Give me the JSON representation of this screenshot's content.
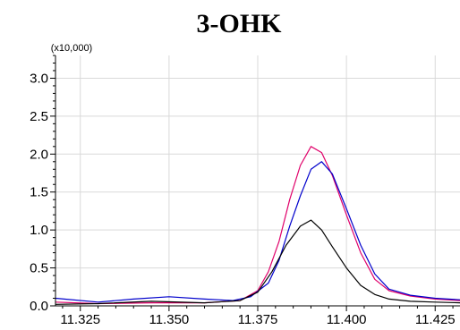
{
  "chart_data": {
    "type": "line",
    "title": "3-OHK",
    "y_multiplier_label": "(x10,000)",
    "xlim": [
      11.318,
      11.432
    ],
    "ylim": [
      0.0,
      3.3
    ],
    "x_ticks": [
      11.325,
      11.35,
      11.375,
      11.4,
      11.425
    ],
    "x_tick_labels": [
      "11.325",
      "11.350",
      "11.375",
      "11.400",
      "11.425"
    ],
    "y_ticks": [
      0.0,
      0.5,
      1.0,
      1.5,
      2.0,
      2.5,
      3.0
    ],
    "y_tick_labels": [
      "0.0",
      "0.5",
      "1.0",
      "1.5",
      "2.0",
      "2.5",
      "3.0"
    ],
    "grid": true,
    "legend": "none",
    "series": [
      {
        "color": "#e0006a",
        "x": [
          11.318,
          11.33,
          11.345,
          11.36,
          11.37,
          11.375,
          11.378,
          11.381,
          11.384,
          11.387,
          11.39,
          11.393,
          11.396,
          11.4,
          11.404,
          11.408,
          11.412,
          11.418,
          11.425,
          11.432
        ],
        "y": [
          0.05,
          0.03,
          0.04,
          0.04,
          0.07,
          0.2,
          0.45,
          0.85,
          1.4,
          1.85,
          2.1,
          2.02,
          1.72,
          1.2,
          0.7,
          0.35,
          0.2,
          0.13,
          0.09,
          0.07
        ]
      },
      {
        "color": "#0000cc",
        "x": [
          11.318,
          11.33,
          11.34,
          11.35,
          11.36,
          11.368,
          11.373,
          11.378,
          11.381,
          11.384,
          11.387,
          11.39,
          11.393,
          11.396,
          11.4,
          11.404,
          11.408,
          11.412,
          11.418,
          11.425,
          11.432
        ],
        "y": [
          0.1,
          0.05,
          0.09,
          0.12,
          0.09,
          0.07,
          0.12,
          0.3,
          0.6,
          1.05,
          1.45,
          1.8,
          1.9,
          1.74,
          1.28,
          0.8,
          0.42,
          0.22,
          0.14,
          0.1,
          0.08
        ]
      },
      {
        "color": "#000000",
        "x": [
          11.318,
          11.33,
          11.345,
          11.36,
          11.37,
          11.375,
          11.379,
          11.383,
          11.387,
          11.39,
          11.393,
          11.396,
          11.4,
          11.404,
          11.408,
          11.412,
          11.418,
          11.425,
          11.432
        ],
        "y": [
          0.02,
          0.03,
          0.06,
          0.04,
          0.07,
          0.18,
          0.45,
          0.8,
          1.05,
          1.13,
          1.0,
          0.78,
          0.5,
          0.27,
          0.15,
          0.09,
          0.06,
          0.05,
          0.04
        ]
      }
    ]
  }
}
